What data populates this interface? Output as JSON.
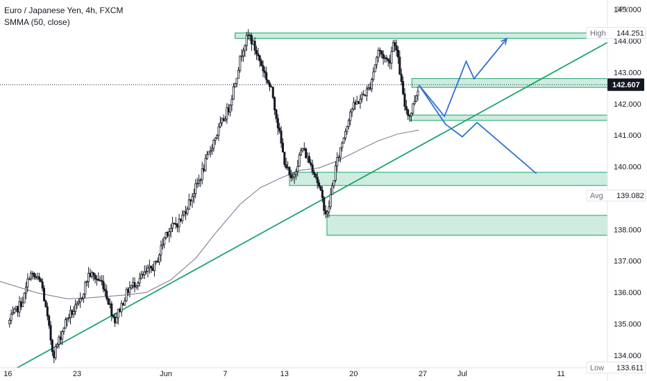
{
  "chart_data": {
    "type": "candlestick",
    "symbol_title": "Euro / Japanese Yen, 4h, FXCM",
    "indicator_label": "SMMA (50, close)",
    "currency": "JPY",
    "y_ticks": [
      "145.000",
      "144.000",
      "143.000",
      "142.000",
      "141.000",
      "140.000",
      "139.000",
      "138.000",
      "137.000",
      "136.000",
      "135.000",
      "134.000"
    ],
    "y_range": [
      133.6,
      145.3
    ],
    "x_ticks": [
      {
        "label": "16",
        "day": 0
      },
      {
        "label": "23",
        "day": 7
      },
      {
        "label": "Jun",
        "day": 16
      },
      {
        "label": "7",
        "day": 22
      },
      {
        "label": "13",
        "day": 28
      },
      {
        "label": "20",
        "day": 35
      },
      {
        "label": "27",
        "day": 42
      },
      {
        "label": "Jul",
        "day": 46
      },
      {
        "label": "11",
        "day": 56
      }
    ],
    "x_range": [
      -0.8,
      60.7
    ],
    "markers": {
      "high": {
        "label": "High",
        "value": "144.251",
        "price": 144.251
      },
      "avg": {
        "label": "Avg",
        "value": "139.082",
        "price": 139.082
      },
      "low": {
        "label": "Low",
        "value": "133.611",
        "price": 133.611
      },
      "last": {
        "value": "142.607",
        "price": 142.607
      }
    },
    "last_day": 41.6,
    "waypoints": [
      [
        0,
        135.0
      ],
      [
        1.6,
        135.8
      ],
      [
        2.2,
        136.6
      ],
      [
        3.4,
        136.3
      ],
      [
        4.6,
        134.0
      ],
      [
        6.0,
        135.2
      ],
      [
        7.2,
        135.6
      ],
      [
        8.2,
        136.6
      ],
      [
        9.6,
        136.3
      ],
      [
        10.8,
        135.1
      ],
      [
        12.2,
        136.1
      ],
      [
        13.6,
        136.5
      ],
      [
        15.0,
        136.9
      ],
      [
        16.0,
        137.9
      ],
      [
        17.5,
        138.3
      ],
      [
        19.4,
        139.6
      ],
      [
        20.8,
        140.8
      ],
      [
        22.4,
        141.9
      ],
      [
        23.8,
        143.8
      ],
      [
        24.4,
        144.2
      ],
      [
        25.6,
        143.3
      ],
      [
        26.8,
        142.3
      ],
      [
        27.9,
        140.3
      ],
      [
        28.7,
        139.5
      ],
      [
        29.8,
        140.6
      ],
      [
        31.1,
        139.8
      ],
      [
        32.3,
        138.4
      ],
      [
        33.2,
        140.0
      ],
      [
        34.7,
        141.8
      ],
      [
        36.6,
        142.5
      ],
      [
        37.5,
        143.7
      ],
      [
        38.6,
        143.3
      ],
      [
        39.1,
        144.1
      ],
      [
        39.6,
        143.2
      ],
      [
        40.1,
        142.0
      ],
      [
        40.7,
        141.6
      ],
      [
        41.6,
        142.6
      ]
    ],
    "smma_points": [
      [
        -0.8,
        136.35
      ],
      [
        3.0,
        135.98
      ],
      [
        6.0,
        135.8
      ],
      [
        8.0,
        135.82
      ],
      [
        12.0,
        135.92
      ],
      [
        14.0,
        136.0
      ],
      [
        16.5,
        136.4
      ],
      [
        19.0,
        137.08
      ],
      [
        21.0,
        137.88
      ],
      [
        23.5,
        138.8
      ],
      [
        25.5,
        139.32
      ],
      [
        27.5,
        139.62
      ],
      [
        29.5,
        139.88
      ],
      [
        31.5,
        139.96
      ],
      [
        33.5,
        140.2
      ],
      [
        35.5,
        140.52
      ],
      [
        37.5,
        140.82
      ],
      [
        39.5,
        141.04
      ],
      [
        41.6,
        141.16
      ]
    ],
    "trendline": {
      "from": [
        -0.8,
        133.3
      ],
      "to": [
        60.7,
        143.95
      ]
    },
    "zones": [
      {
        "x0": 23.0,
        "x1": 60.7,
        "y0": 144.08,
        "y1": 144.25
      },
      {
        "x0": 40.9,
        "x1": 60.7,
        "y0": 142.52,
        "y1": 142.8
      },
      {
        "x0": 40.7,
        "x1": 60.7,
        "y0": 141.47,
        "y1": 141.64
      },
      {
        "x0": 28.5,
        "x1": 60.7,
        "y0": 139.4,
        "y1": 139.82
      },
      {
        "x0": 32.3,
        "x1": 60.7,
        "y0": 137.82,
        "y1": 138.45
      }
    ],
    "projections": [
      [
        [
          41.6,
          142.6
        ],
        [
          44.2,
          141.6
        ],
        [
          46.4,
          143.35
        ],
        [
          47.2,
          142.8
        ],
        [
          50.5,
          144.07
        ]
      ],
      [
        [
          41.6,
          142.6
        ],
        [
          44.3,
          141.35
        ],
        [
          46.0,
          140.95
        ],
        [
          47.5,
          141.4
        ],
        [
          53.5,
          139.78
        ]
      ]
    ],
    "colors": {
      "candle": "#131722",
      "smma": "#7e6b8f",
      "trendline": "#1aa36a",
      "zone_fill": "#bfe6d6",
      "zone_border": "#1aa36a",
      "projection": "#2f6fd6",
      "last_line": "#131722",
      "axis_text": "#131722",
      "muted_text": "#6a6d78"
    }
  }
}
